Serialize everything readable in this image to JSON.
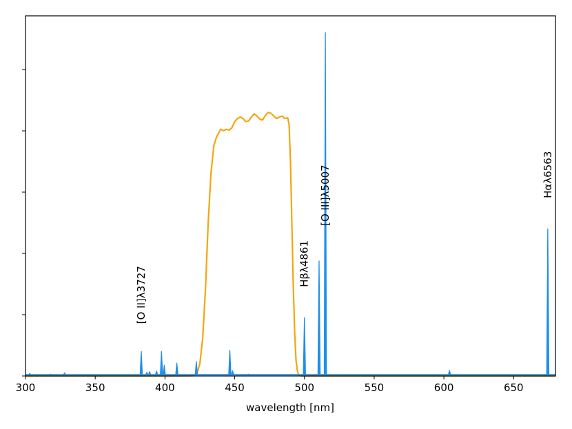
{
  "chart_data": {
    "type": "line",
    "title": "",
    "xlabel": "wavelength [nm]",
    "ylabel": "",
    "xlim": [
      300,
      680
    ],
    "ylim": [
      0,
      1
    ],
    "x_ticks": [
      300,
      350,
      400,
      450,
      500,
      550,
      600,
      650
    ],
    "y_tick_count": 6,
    "y_tick_labels_shown": false,
    "grid": false,
    "series": [
      {
        "name": "",
        "color": "#1f8fe8",
        "role": "emission-spectrum",
        "baseline": 0.004,
        "lines": [
          {
            "x": 303,
            "y": 0.008
          },
          {
            "x": 318,
            "y": 0.006
          },
          {
            "x": 328,
            "y": 0.01
          },
          {
            "x": 383,
            "y": 0.08
          },
          {
            "x": 387,
            "y": 0.012
          },
          {
            "x": 389,
            "y": 0.014
          },
          {
            "x": 394,
            "y": 0.016
          },
          {
            "x": 397.5,
            "y": 0.08
          },
          {
            "x": 399.5,
            "y": 0.035
          },
          {
            "x": 408.5,
            "y": 0.042
          },
          {
            "x": 422.5,
            "y": 0.047
          },
          {
            "x": 446.5,
            "y": 0.084
          },
          {
            "x": 448.5,
            "y": 0.017
          },
          {
            "x": 460,
            "y": 0.006
          },
          {
            "x": 500,
            "y": 0.19
          },
          {
            "x": 510.5,
            "y": 0.375
          },
          {
            "x": 515,
            "y": 1.12
          },
          {
            "x": 604,
            "y": 0.018
          },
          {
            "x": 648,
            "y": 0.004
          },
          {
            "x": 674.5,
            "y": 0.48
          }
        ]
      },
      {
        "name": "",
        "color": "#f5a50f",
        "role": "filter-transmission",
        "points": [
          [
            300,
            0
          ],
          [
            374,
            0
          ],
          [
            400,
            0
          ],
          [
            420,
            0.001
          ],
          [
            423,
            0.008
          ],
          [
            425,
            0.04
          ],
          [
            427,
            0.12
          ],
          [
            429,
            0.28
          ],
          [
            431,
            0.5
          ],
          [
            433,
            0.66
          ],
          [
            435,
            0.75
          ],
          [
            437,
            0.78
          ],
          [
            440,
            0.805
          ],
          [
            442,
            0.8
          ],
          [
            444,
            0.805
          ],
          [
            446,
            0.802
          ],
          [
            448,
            0.81
          ],
          [
            450,
            0.83
          ],
          [
            452,
            0.84
          ],
          [
            454,
            0.845
          ],
          [
            456,
            0.84
          ],
          [
            458,
            0.83
          ],
          [
            460,
            0.832
          ],
          [
            462,
            0.845
          ],
          [
            464,
            0.855
          ],
          [
            466,
            0.848
          ],
          [
            468,
            0.838
          ],
          [
            470,
            0.835
          ],
          [
            472,
            0.85
          ],
          [
            474,
            0.86
          ],
          [
            476,
            0.857
          ],
          [
            478,
            0.848
          ],
          [
            480,
            0.84
          ],
          [
            482,
            0.845
          ],
          [
            484,
            0.848
          ],
          [
            486,
            0.84
          ],
          [
            488,
            0.842
          ],
          [
            489,
            0.82
          ],
          [
            490,
            0.7
          ],
          [
            491,
            0.5
          ],
          [
            492,
            0.3
          ],
          [
            493,
            0.14
          ],
          [
            494,
            0.05
          ],
          [
            495,
            0.015
          ],
          [
            496,
            0.003
          ],
          [
            498,
            0
          ],
          [
            680,
            0
          ]
        ]
      }
    ],
    "annotations": [
      {
        "text": "[O II]λ3727",
        "x": 383,
        "y": 0.17
      },
      {
        "text": "Hβλ4861",
        "x": 500,
        "y": 0.29
      },
      {
        "text": "[O III]λ5007",
        "x": 515,
        "y": 0.49
      },
      {
        "text": "Hαλ6563",
        "x": 674.5,
        "y": 0.58
      }
    ]
  }
}
